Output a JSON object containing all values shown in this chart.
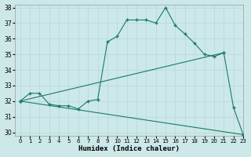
{
  "xlabel": "Humidex (Indice chaleur)",
  "bg_color": "#cce8e8",
  "line_color": "#1a7a6a",
  "grid_color": "#b8d8d8",
  "xlim": [
    -0.5,
    23
  ],
  "ylim": [
    29.8,
    38.2
  ],
  "xticks": [
    0,
    1,
    2,
    3,
    4,
    5,
    6,
    7,
    8,
    9,
    10,
    11,
    12,
    13,
    14,
    15,
    16,
    17,
    18,
    19,
    20,
    21,
    22,
    23
  ],
  "yticks": [
    30,
    31,
    32,
    33,
    34,
    35,
    36,
    37,
    38
  ],
  "line1_x": [
    0,
    1,
    2,
    3,
    4,
    5,
    6,
    7,
    8,
    9,
    10,
    11,
    12,
    13,
    14,
    15,
    16,
    17,
    18,
    19,
    20,
    21,
    22,
    23
  ],
  "line1_y": [
    32.0,
    32.5,
    32.5,
    31.8,
    31.7,
    31.7,
    31.5,
    32.0,
    32.1,
    35.8,
    36.15,
    37.2,
    37.2,
    37.2,
    37.0,
    38.0,
    36.85,
    36.3,
    35.7,
    35.0,
    34.85,
    35.1,
    31.6,
    29.85
  ],
  "line2_x": [
    0,
    21
  ],
  "line2_y": [
    32.0,
    35.1
  ],
  "line3_x": [
    0,
    23
  ],
  "line3_y": [
    32.0,
    29.85
  ]
}
